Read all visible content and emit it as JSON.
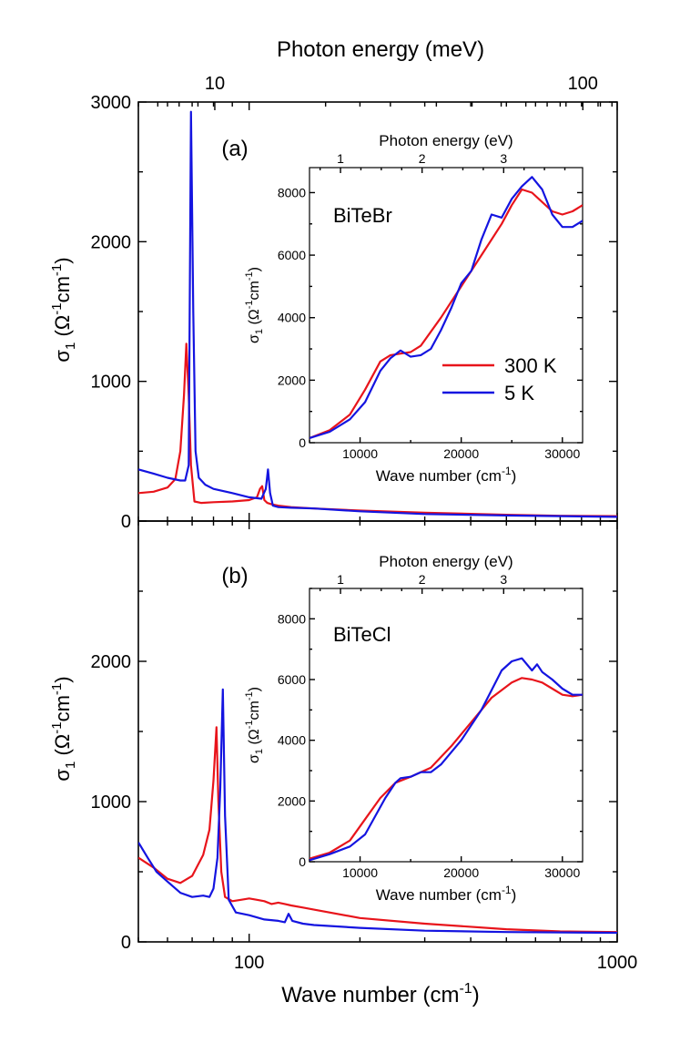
{
  "figure": {
    "top_axis_label": "Photon energy (meV)",
    "bottom_axis_label": "Wave number (cm",
    "bottom_axis_label_sup": "-1",
    "bottom_axis_label_end": ")",
    "ylabel_sigma": "σ",
    "ylabel_sub": "1",
    "ylabel_unit": " (Ω",
    "ylabel_sup1": "-1",
    "ylabel_cm": "cm",
    "ylabel_sup2": "-1",
    "ylabel_end": ")",
    "inset_top_label": "Photon energy (eV)",
    "inset_bottom_label": "Wave number (cm",
    "colors": {
      "300K": "#e8141b",
      "5K": "#1414e0"
    }
  },
  "chart_data": [
    {
      "type": "line",
      "panel_label": "(a)",
      "x_scale": "log",
      "xlim": [
        50,
        1000
      ],
      "ylim": [
        0,
        3000
      ],
      "y_ticks": [
        "0",
        "1000",
        "2000",
        "3000"
      ],
      "top_ticks": [
        "10",
        "100"
      ],
      "top_tick_values_meV": [
        10,
        100
      ],
      "series": [
        {
          "name": "300 K",
          "color": "#e8141b",
          "x": [
            50,
            55,
            60,
            63,
            65,
            66.5,
            67.5,
            68.5,
            69.5,
            71,
            74,
            80,
            90,
            100,
            105,
            107,
            108.5,
            110,
            112,
            115,
            120,
            130,
            150,
            200,
            300,
            500,
            700,
            1000
          ],
          "y": [
            200,
            210,
            240,
            300,
            500,
            900,
            1270,
            900,
            400,
            140,
            130,
            135,
            140,
            150,
            170,
            230,
            250,
            150,
            130,
            120,
            110,
            100,
            90,
            75,
            60,
            45,
            38,
            35
          ]
        },
        {
          "name": "5 K",
          "color": "#1414e0",
          "x": [
            50,
            55,
            60,
            65,
            67,
            68.5,
            69.5,
            70.5,
            71.5,
            73,
            76,
            80,
            90,
            100,
            108,
            111,
            112.5,
            114,
            116,
            120,
            130,
            150,
            200,
            300,
            500,
            700,
            1000
          ],
          "y": [
            370,
            340,
            310,
            290,
            290,
            400,
            2930,
            1500,
            500,
            310,
            260,
            230,
            200,
            170,
            160,
            230,
            370,
            200,
            110,
            100,
            95,
            90,
            70,
            50,
            40,
            35,
            30
          ]
        }
      ]
    },
    {
      "type": "line",
      "panel_label": "(b)",
      "x_scale": "log",
      "xlim": [
        50,
        1000
      ],
      "ylim": [
        0,
        3000
      ],
      "y_ticks": [
        "0",
        "1000",
        "2000"
      ],
      "x_ticks": [
        "100",
        "1000"
      ],
      "series": [
        {
          "name": "300 K",
          "color": "#e8141b",
          "x": [
            50,
            55,
            60,
            65,
            70,
            75,
            78,
            80,
            81.5,
            82.5,
            84,
            86,
            90,
            95,
            100,
            105,
            110,
            115,
            120,
            125,
            130,
            140,
            150,
            200,
            300,
            500,
            700,
            1000
          ],
          "y": [
            600,
            530,
            450,
            420,
            470,
            620,
            800,
            1150,
            1530,
            1000,
            500,
            320,
            290,
            300,
            310,
            300,
            290,
            270,
            280,
            270,
            260,
            245,
            230,
            170,
            130,
            90,
            75,
            70
          ]
        },
        {
          "name": "5 K",
          "color": "#1414e0",
          "x": [
            50,
            53,
            56,
            60,
            65,
            70,
            75,
            78,
            80,
            82,
            83.5,
            84.8,
            86,
            88,
            92,
            100,
            110,
            120,
            125,
            128,
            131,
            140,
            150,
            200,
            300,
            500,
            1000
          ],
          "y": [
            710,
            600,
            500,
            430,
            350,
            320,
            330,
            320,
            380,
            600,
            1100,
            1800,
            900,
            300,
            210,
            190,
            160,
            150,
            140,
            200,
            150,
            130,
            120,
            100,
            80,
            70,
            65
          ]
        }
      ]
    },
    {
      "type": "line",
      "inset_of": "(a)",
      "sample": "BiTeBr",
      "xlim": [
        5000,
        32000
      ],
      "ylim": [
        0,
        8800
      ],
      "x_ticks": [
        "10000",
        "20000",
        "30000"
      ],
      "y_ticks": [
        "0",
        "2000",
        "4000",
        "6000",
        "8000"
      ],
      "top_ticks": [
        "1",
        "2",
        "3"
      ],
      "top_tick_values_eV": [
        1,
        2,
        3
      ],
      "legend": [
        "300 K",
        "5 K"
      ],
      "series": [
        {
          "name": "300 K",
          "color": "#e8141b",
          "x": [
            5000,
            7000,
            9000,
            10500,
            12000,
            13000,
            14000,
            15000,
            16000,
            18000,
            20000,
            22000,
            24000,
            25000,
            26000,
            27000,
            28000,
            29000,
            30000,
            31000,
            32000
          ],
          "y": [
            150,
            400,
            900,
            1700,
            2600,
            2800,
            2850,
            2900,
            3100,
            4000,
            5000,
            6000,
            7000,
            7600,
            8100,
            8000,
            7700,
            7400,
            7300,
            7400,
            7600
          ]
        },
        {
          "name": "5 K",
          "color": "#1414e0",
          "x": [
            5000,
            7000,
            9000,
            10500,
            12000,
            13000,
            14000,
            15000,
            16000,
            17000,
            18000,
            19000,
            20000,
            21000,
            22000,
            23000,
            24000,
            25000,
            26000,
            27000,
            28000,
            29000,
            30000,
            31000,
            32000
          ],
          "y": [
            150,
            350,
            750,
            1300,
            2300,
            2700,
            2950,
            2750,
            2800,
            3000,
            3600,
            4300,
            5100,
            5500,
            6500,
            7300,
            7200,
            7800,
            8200,
            8500,
            8100,
            7300,
            6900,
            6900,
            7100
          ]
        }
      ]
    },
    {
      "type": "line",
      "inset_of": "(b)",
      "sample": "BiTeCl",
      "xlim": [
        5000,
        32000
      ],
      "ylim": [
        0,
        9000
      ],
      "x_ticks": [
        "10000",
        "20000",
        "30000"
      ],
      "y_ticks": [
        "0",
        "2000",
        "4000",
        "6000",
        "8000"
      ],
      "top_ticks": [
        "1",
        "2",
        "3"
      ],
      "top_tick_values_eV": [
        1,
        2,
        3
      ],
      "series": [
        {
          "name": "300 K",
          "color": "#e8141b",
          "x": [
            5000,
            7000,
            9000,
            10500,
            12000,
            13500,
            15000,
            17000,
            19000,
            21000,
            23000,
            25000,
            26000,
            27000,
            28000,
            29000,
            30000,
            31000,
            32000
          ],
          "y": [
            100,
            300,
            700,
            1400,
            2100,
            2600,
            2800,
            3100,
            3800,
            4600,
            5400,
            5900,
            6050,
            6000,
            5900,
            5700,
            5500,
            5450,
            5500
          ]
        },
        {
          "name": "5 K",
          "color": "#1414e0",
          "x": [
            5000,
            7000,
            9000,
            10500,
            11500,
            12500,
            13500,
            14000,
            15000,
            16000,
            17000,
            18000,
            20000,
            22000,
            24000,
            25000,
            26000,
            27000,
            27500,
            28000,
            29000,
            30000,
            31000,
            32000
          ],
          "y": [
            50,
            250,
            500,
            900,
            1500,
            2100,
            2600,
            2750,
            2800,
            2950,
            2950,
            3200,
            4000,
            5000,
            6300,
            6600,
            6700,
            6300,
            6500,
            6250,
            6000,
            5700,
            5500,
            5500
          ]
        }
      ]
    }
  ]
}
